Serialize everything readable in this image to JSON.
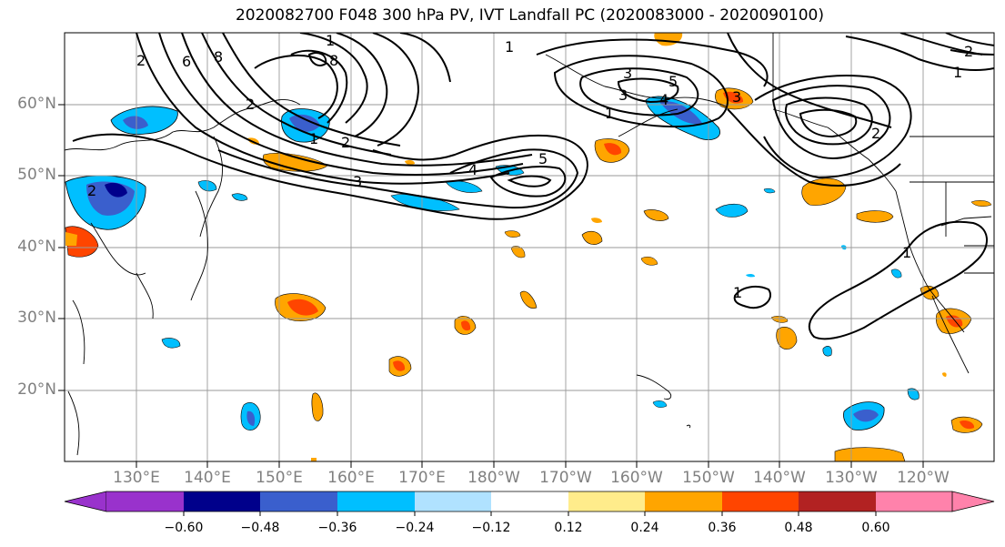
{
  "title": "2020082700 F048 300 hPa PV, IVT Landfall PC (2020083000 - 2020090100)",
  "lat_labels": [
    "60°N",
    "50°N",
    "40°N",
    "30°N",
    "20°N"
  ],
  "lon_labels": [
    "130°E",
    "140°E",
    "150°E",
    "160°E",
    "170°E",
    "180°W",
    "170°W",
    "160°W",
    "150°W",
    "140°W",
    "130°W",
    "120°W"
  ],
  "colorbar": {
    "tick_labels": [
      "−0.60",
      "−0.48",
      "−0.36",
      "−0.24",
      "−0.12",
      "0.12",
      "0.24",
      "0.36",
      "0.48",
      "0.60"
    ],
    "colors": [
      "#9932cc",
      "#00008b",
      "#3a5fcd",
      "#00bfff",
      "#b0e2ff",
      "#ffffff",
      "#ffec8b",
      "#ffa500",
      "#ff4500",
      "#b22222",
      "#ff82ab"
    ]
  },
  "contour_labels": [
    "2",
    "6",
    "8",
    "1",
    "2",
    "1",
    "2",
    "8",
    "2",
    "3",
    "4",
    "5",
    "3",
    "1",
    "5",
    "3",
    "4",
    "1",
    "3",
    "2",
    "1",
    "1",
    "2",
    "1"
  ]
}
